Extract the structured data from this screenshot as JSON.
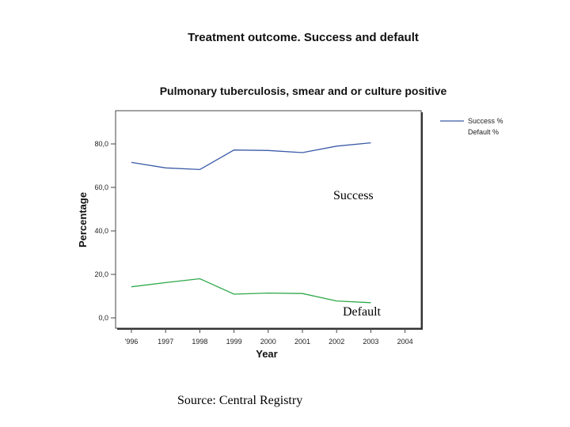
{
  "slide": {
    "title": "Treatment outcome. Success and default",
    "source": "Source: Central Registry"
  },
  "chart_data": {
    "type": "line",
    "title": "Pulmonary tuberculosis, smear and or culture positive",
    "xlabel": "Year",
    "ylabel": "Percentage",
    "categories": [
      "1996",
      "1997",
      "1998",
      "1999",
      "2000",
      "2001",
      "2002",
      "2003",
      "2004"
    ],
    "category_labels": [
      "'996",
      "1997",
      "1998",
      "1999",
      "2000",
      "2001",
      "2002",
      "2003",
      "2004"
    ],
    "y_ticks": [
      0,
      20,
      40,
      60,
      80
    ],
    "y_tick_labels": [
      "0,0",
      "20,0",
      "40,0",
      "60,0",
      "80,0"
    ],
    "ylim": [
      0,
      95
    ],
    "grid": false,
    "legend_position": "top-right",
    "series": [
      {
        "name": "Success %",
        "color": "#3b5aa8",
        "values": [
          71.5,
          69,
          68.2,
          77.2,
          77,
          76,
          79,
          80.5,
          null
        ]
      },
      {
        "name": "Default %",
        "color": "#2ea84a",
        "values": [
          14.3,
          16.2,
          18,
          10.9,
          11.4,
          11.2,
          7.8,
          7,
          null
        ]
      }
    ],
    "annotations": [
      {
        "text": "Success",
        "series": "Success %"
      },
      {
        "text": "Default",
        "series": "Default %"
      }
    ]
  }
}
